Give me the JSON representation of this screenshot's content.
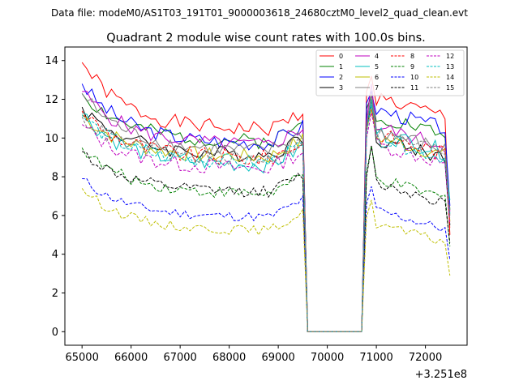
{
  "chart_data": {
    "type": "line",
    "suptitle": "Data file: modeM0/AS1T03_191T01_9000003618_24680cztM0_level2_quad_clean.evt",
    "title": "Quadrant 2 module wise count rates with 100.0s bins.",
    "xlabel": "",
    "ylabel": "",
    "x_offset_label": "+3.251e8",
    "xlim": [
      64650,
      72850
    ],
    "ylim": [
      -0.7,
      14.7
    ],
    "x_ticks": [
      65000,
      66000,
      67000,
      68000,
      69000,
      70000,
      71000,
      72000
    ],
    "y_ticks": [
      0,
      2,
      4,
      6,
      8,
      10,
      12,
      14
    ],
    "x_tick_labels": [
      "65000",
      "66000",
      "67000",
      "68000",
      "69000",
      "70000",
      "71000",
      "72000"
    ],
    "y_tick_labels": [
      "0",
      "2",
      "4",
      "6",
      "8",
      "10",
      "12",
      "14"
    ],
    "legend_position": "top-right",
    "time_segments": [
      {
        "start": 65000,
        "end": 69500,
        "step": 100
      },
      {
        "start": 69600,
        "end": 70700,
        "step": 100,
        "zero": true
      },
      {
        "start": 70800,
        "end": 72500,
        "step": 100
      }
    ],
    "series": [
      {
        "name": "0",
        "color": "#ff0000",
        "dash": "solid",
        "start": 13.9,
        "level": 10.4,
        "peak": 13.2,
        "level2": 12.1,
        "end_val": 5.0,
        "noise": 0.4,
        "seed": 1
      },
      {
        "name": "1",
        "color": "#008000",
        "dash": "solid",
        "start": 12.3,
        "level": 9.8,
        "peak": 12.2,
        "level2": 11.2,
        "end_val": 6.3,
        "noise": 0.4,
        "seed": 2
      },
      {
        "name": "2",
        "color": "#0000ff",
        "dash": "solid",
        "start": 12.8,
        "level": 9.7,
        "peak": 12.4,
        "level2": 11.5,
        "end_val": 6.5,
        "noise": 0.4,
        "seed": 3
      },
      {
        "name": "3",
        "color": "#000000",
        "dash": "solid",
        "start": 11.6,
        "level": 9.1,
        "peak": 12.0,
        "level2": 10.0,
        "end_val": 5.5,
        "noise": 0.4,
        "seed": 4
      },
      {
        "name": "4",
        "color": "#bf00bf",
        "dash": "solid",
        "start": 12.4,
        "level": 9.6,
        "peak": 12.8,
        "level2": 10.6,
        "end_val": 6.2,
        "noise": 0.4,
        "seed": 5
      },
      {
        "name": "5",
        "color": "#00bfbf",
        "dash": "solid",
        "start": 11.3,
        "level": 8.6,
        "peak": 12.0,
        "level2": 10.3,
        "end_val": 6.8,
        "noise": 0.45,
        "seed": 6
      },
      {
        "name": "6",
        "color": "#bfbf00",
        "dash": "solid",
        "start": 11.2,
        "level": 9.0,
        "peak": 11.5,
        "level2": 10.1,
        "end_val": 5.7,
        "noise": 0.4,
        "seed": 7
      },
      {
        "name": "7",
        "color": "#808080",
        "dash": "solid",
        "start": 12.3,
        "level": 9.3,
        "peak": 12.3,
        "level2": 10.4,
        "end_val": 6.0,
        "noise": 0.4,
        "seed": 8
      },
      {
        "name": "8",
        "color": "#ff0000",
        "dash": "dashed",
        "start": 11.4,
        "level": 8.9,
        "peak": 11.6,
        "level2": 10.2,
        "end_val": 5.3,
        "noise": 0.45,
        "seed": 9
      },
      {
        "name": "9",
        "color": "#008000",
        "dash": "dashed",
        "start": 9.5,
        "level": 7.1,
        "peak": 9.6,
        "level2": 7.9,
        "end_val": 4.4,
        "noise": 0.3,
        "seed": 10
      },
      {
        "name": "10",
        "color": "#0000ff",
        "dash": "dashed",
        "start": 7.9,
        "level": 5.9,
        "peak": 7.5,
        "level2": 6.3,
        "end_val": 3.7,
        "noise": 0.25,
        "seed": 11
      },
      {
        "name": "11",
        "color": "#000000",
        "dash": "dashed",
        "start": 9.3,
        "level": 7.2,
        "peak": 9.6,
        "level2": 7.7,
        "end_val": 4.6,
        "noise": 0.3,
        "seed": 12
      },
      {
        "name": "12",
        "color": "#bf00bf",
        "dash": "dashed",
        "start": 10.7,
        "level": 8.4,
        "peak": 11.3,
        "level2": 9.7,
        "end_val": 5.6,
        "noise": 0.4,
        "seed": 13
      },
      {
        "name": "13",
        "color": "#00bfbf",
        "dash": "dashed",
        "start": 11.2,
        "level": 8.7,
        "peak": 11.7,
        "level2": 10.0,
        "end_val": 6.1,
        "noise": 0.4,
        "seed": 14
      },
      {
        "name": "14",
        "color": "#bfbf00",
        "dash": "dashed",
        "start": 7.4,
        "level": 5.2,
        "peak": 6.8,
        "level2": 5.6,
        "end_val": 2.9,
        "noise": 0.25,
        "seed": 15
      },
      {
        "name": "15",
        "color": "#808080",
        "dash": "dashed",
        "start": 11.1,
        "level": 8.9,
        "peak": 12.2,
        "level2": 10.3,
        "end_val": 5.9,
        "noise": 0.4,
        "seed": 16
      }
    ]
  }
}
